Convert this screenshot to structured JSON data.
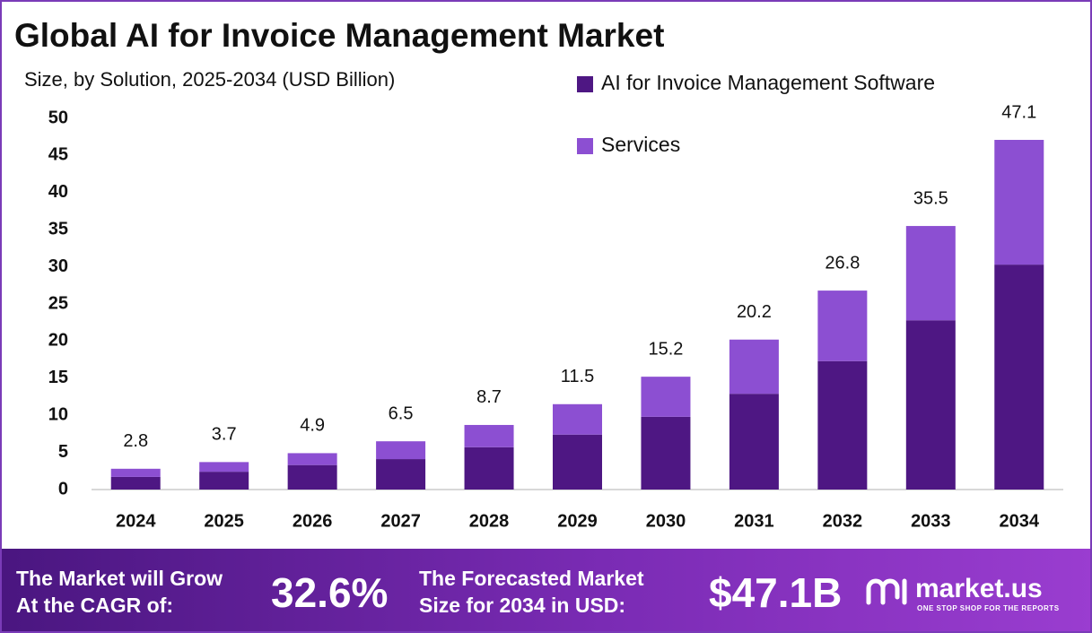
{
  "chart_data": {
    "type": "stacked-bar",
    "title": "Global AI for Invoice Management Market",
    "subtitle": "Size, by Solution, 2025-2034 (USD Billion)",
    "categories": [
      "2024",
      "2025",
      "2026",
      "2027",
      "2028",
      "2029",
      "2030",
      "2031",
      "2032",
      "2033",
      "2034"
    ],
    "series": [
      {
        "name": "AI for Invoice Management Software",
        "color": "#4e1783",
        "values": [
          1.7,
          2.4,
          3.3,
          4.1,
          5.7,
          7.4,
          9.8,
          12.9,
          17.3,
          22.8,
          30.3
        ]
      },
      {
        "name": "Services",
        "color": "#8c4fd2",
        "values": [
          1.1,
          1.3,
          1.6,
          2.4,
          3.0,
          4.1,
          5.4,
          7.3,
          9.5,
          12.7,
          16.8
        ]
      }
    ],
    "totals": [
      2.8,
      3.7,
      4.9,
      6.5,
      8.7,
      11.5,
      15.2,
      20.2,
      26.8,
      35.5,
      47.1
    ],
    "ylim": [
      0,
      50
    ],
    "yticks": [
      0,
      5,
      10,
      15,
      20,
      25,
      30,
      35,
      40,
      45,
      50
    ],
    "legend": "top-right",
    "grid": false
  },
  "footer": {
    "cagr_text": [
      "The Market will Grow",
      "At the CAGR of:"
    ],
    "cagr_value": "32.6%",
    "forecast_text": [
      "The Forecasted Market",
      "Size for 2034 in USD:"
    ],
    "forecast_value": "$47.1B",
    "brand": "market.us",
    "tagline": "ONE STOP SHOP FOR THE REPORTS"
  }
}
